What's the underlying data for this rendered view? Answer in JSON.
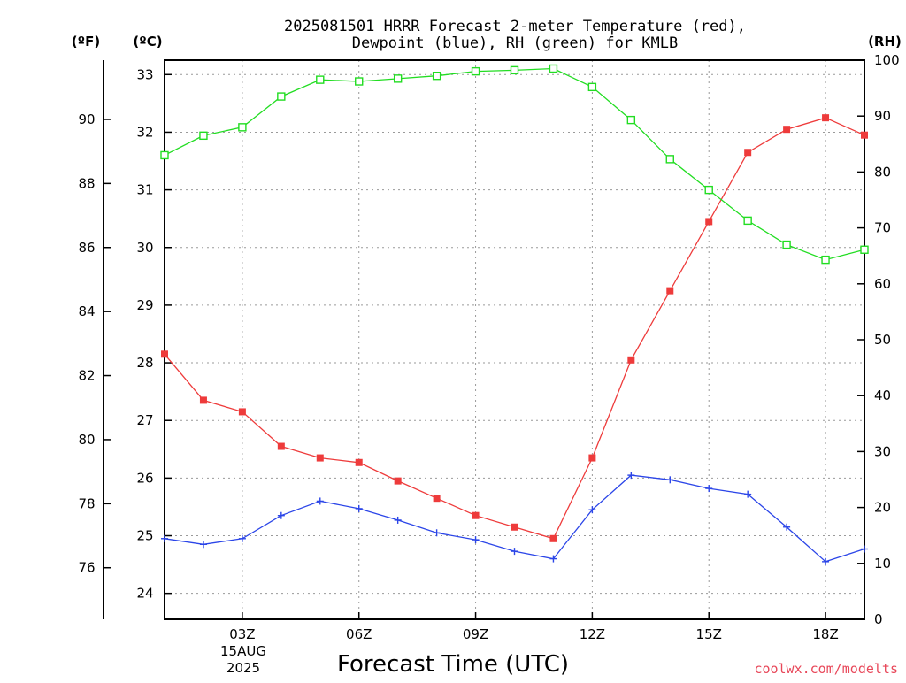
{
  "chart_data": {
    "type": "line",
    "title_line1": "2025081501 HRRR Forecast 2-meter Temperature (red),",
    "title_line2": "Dewpoint (blue), RH (green) for KMLB",
    "xlabel": "Forecast Time (UTC)",
    "credit": "coolwx.com/modelts",
    "date_label_day": "15AUG",
    "date_label_year": "2025",
    "x_ticks": [
      "03Z",
      "06Z",
      "09Z",
      "12Z",
      "15Z",
      "18Z"
    ],
    "x_tick_hours": [
      3,
      6,
      9,
      12,
      15,
      18
    ],
    "xlim": [
      1,
      19
    ],
    "units": {
      "fahrenheit": "(ºF)",
      "celsius": "(ºC)",
      "rh": "(RH)"
    },
    "axes": {
      "celsius": {
        "ylim": [
          23.55,
          33.25
        ],
        "ticks": [
          24,
          25,
          26,
          27,
          28,
          29,
          30,
          31,
          32,
          33
        ]
      },
      "fahrenheit": {
        "ticks": [
          76,
          78,
          80,
          82,
          84,
          86,
          88,
          90
        ]
      },
      "rh": {
        "ylim": [
          0,
          100
        ],
        "ticks": [
          0,
          10,
          20,
          30,
          40,
          50,
          60,
          70,
          80,
          90,
          100
        ]
      }
    },
    "grid": true,
    "hours": [
      1,
      2,
      3,
      4,
      5,
      6,
      7,
      8,
      9,
      10,
      11,
      12,
      13,
      14,
      15,
      16,
      17,
      18,
      19
    ],
    "series": [
      {
        "name": "Temperature",
        "axis": "celsius",
        "color": "#ee3b3b",
        "marker": "filled-square",
        "values": [
          28.15,
          27.35,
          27.15,
          26.55,
          26.35,
          26.27,
          25.95,
          25.65,
          25.35,
          25.15,
          24.95,
          26.35,
          28.05,
          29.25,
          30.45,
          31.65,
          32.05,
          32.25,
          31.95
        ]
      },
      {
        "name": "Dewpoint",
        "axis": "celsius",
        "color": "#2b45e8",
        "marker": "plus",
        "values": [
          24.95,
          24.85,
          24.95,
          25.35,
          25.6,
          25.47,
          25.27,
          25.05,
          24.93,
          24.73,
          24.6,
          25.45,
          26.05,
          25.97,
          25.82,
          25.72,
          25.15,
          24.55,
          24.77
        ]
      },
      {
        "name": "RH",
        "axis": "rh",
        "color": "#22dd22",
        "marker": "open-square",
        "values": [
          83.0,
          86.5,
          88.0,
          93.5,
          96.5,
          96.2,
          96.7,
          97.2,
          98.0,
          98.2,
          98.5,
          95.2,
          89.3,
          82.3,
          76.8,
          71.3,
          67.0,
          64.3,
          66.1
        ]
      }
    ]
  }
}
